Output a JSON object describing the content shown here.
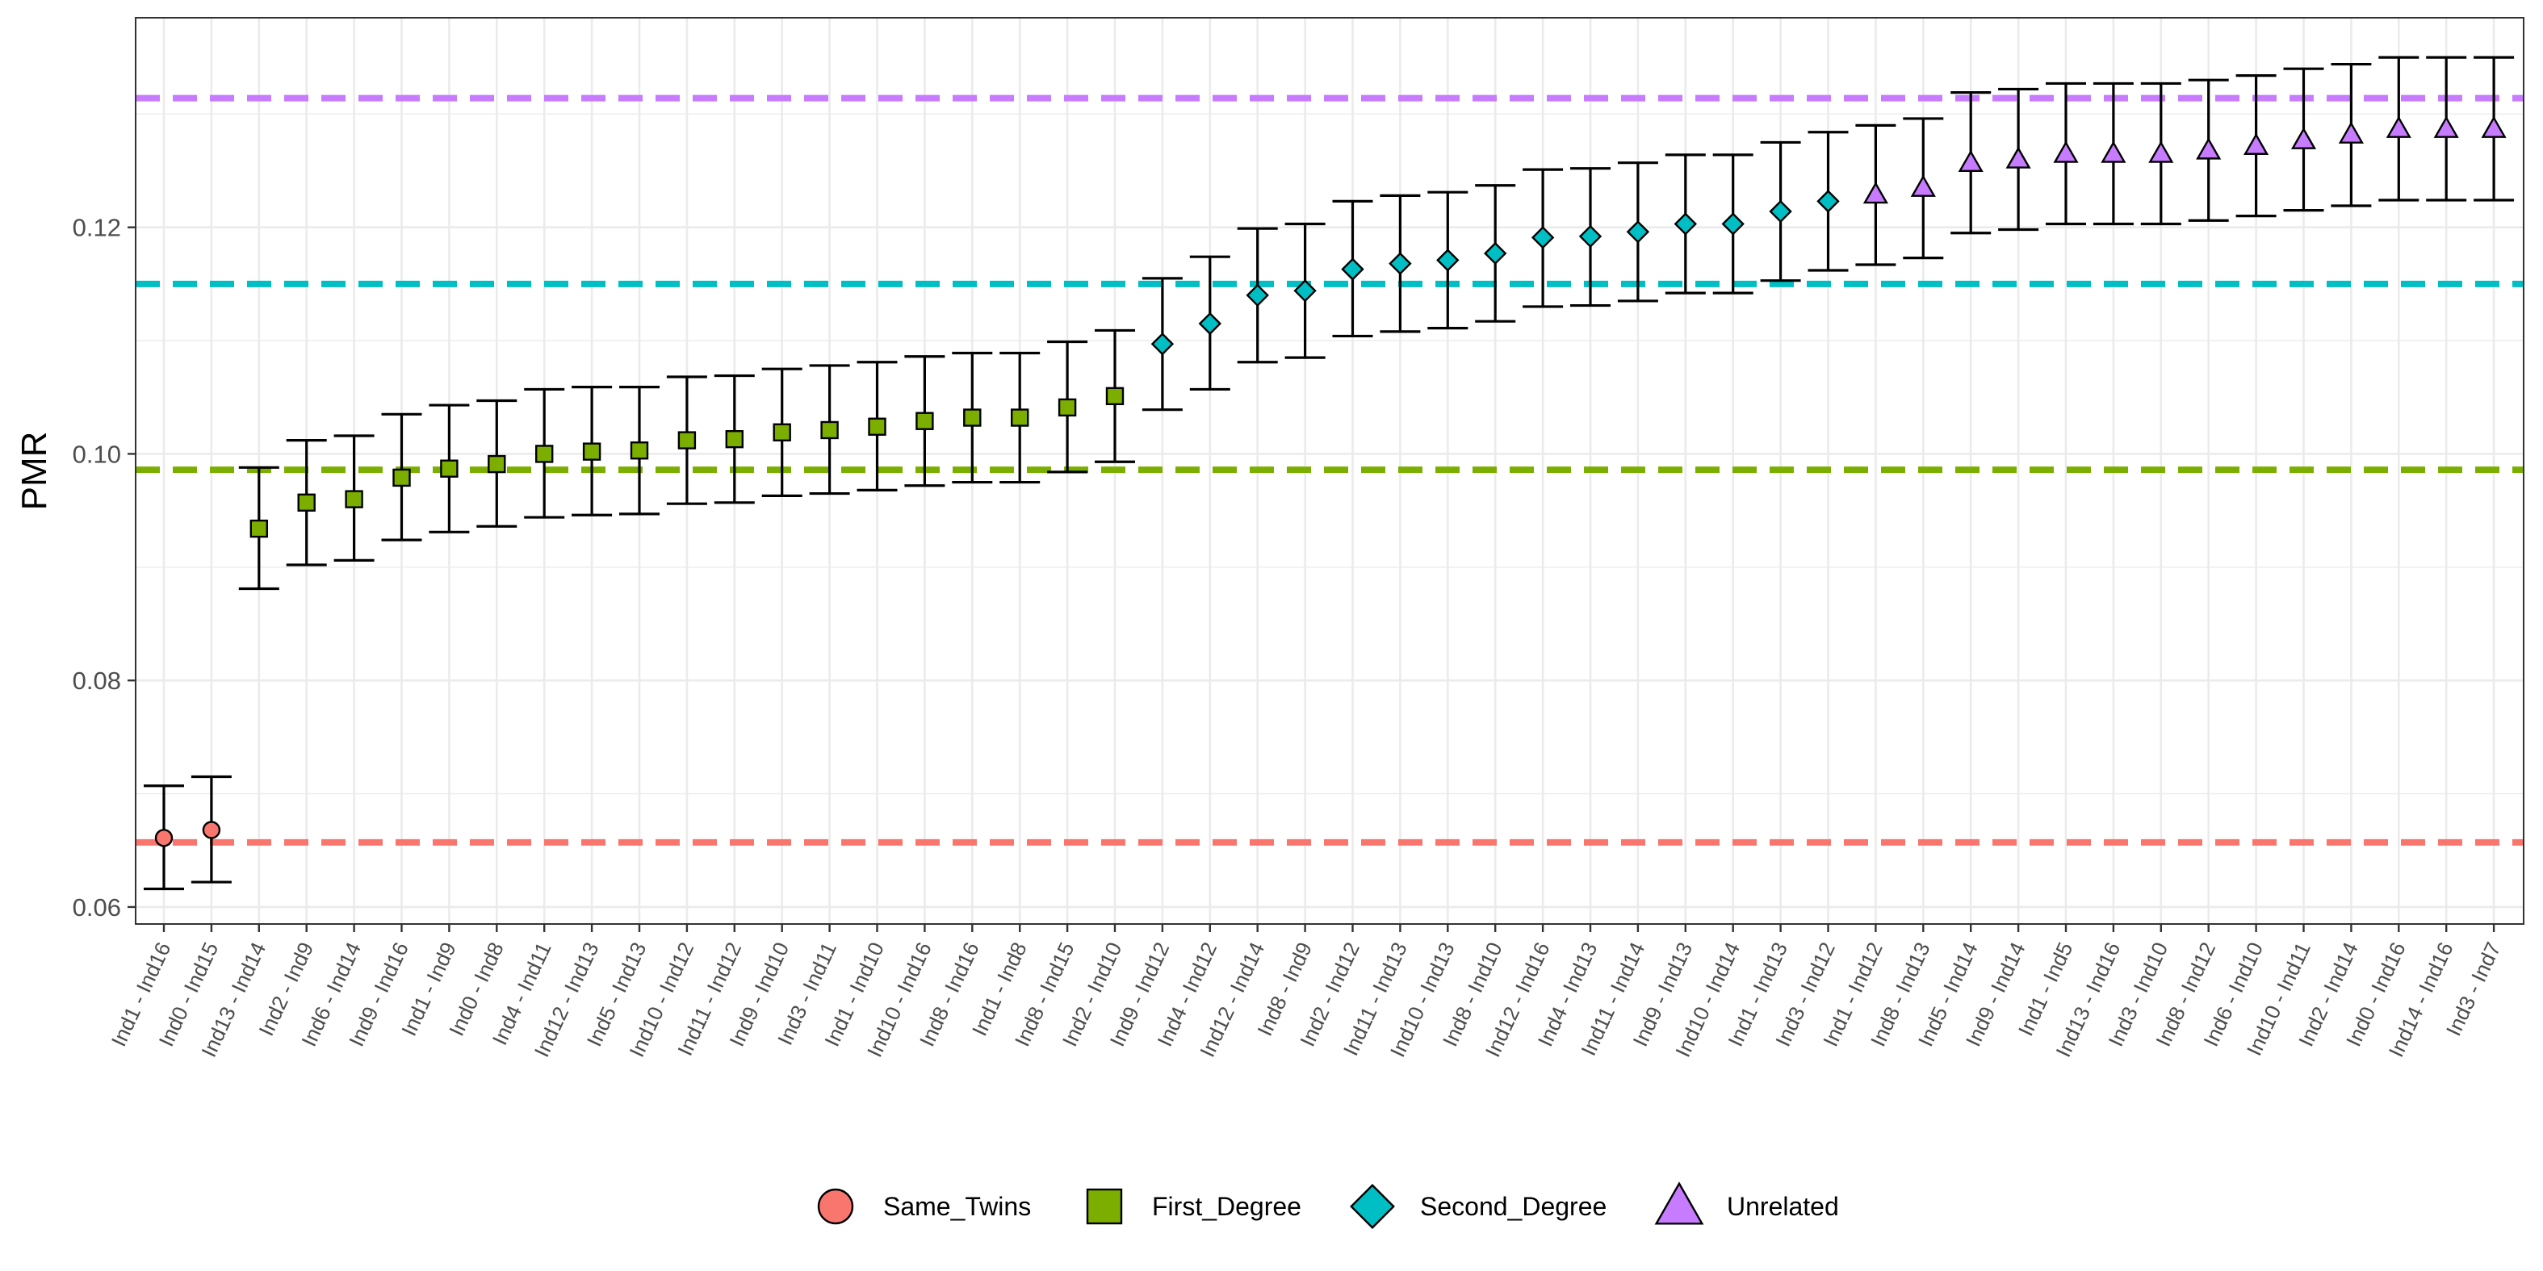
{
  "chart_data": {
    "type": "scatter",
    "title": "",
    "xlabel": "",
    "ylabel": "PMR",
    "ylim": [
      0.0585,
      0.1385
    ],
    "yticks": [
      0.06,
      0.08,
      0.1,
      0.12
    ],
    "ytick_labels": [
      "0.06",
      "0.08",
      "0.10",
      "0.12"
    ],
    "grid": true,
    "legend_position": "bottom",
    "groups": [
      {
        "name": "Same_Twins",
        "color": "#F8766D",
        "shape": "circle",
        "reference_line": 0.0657
      },
      {
        "name": "First_Degree",
        "color": "#7CAE00",
        "shape": "square",
        "reference_line": 0.0986
      },
      {
        "name": "Second_Degree",
        "color": "#00BFC4",
        "shape": "diamond",
        "reference_line": 0.115
      },
      {
        "name": "Unrelated",
        "color": "#C77CFF",
        "shape": "triangle",
        "reference_line": 0.1314
      }
    ],
    "points": [
      {
        "label": "Ind1 - Ind16",
        "group": "Same_Twins",
        "value": 0.0661,
        "lower": 0.0616,
        "upper": 0.0707
      },
      {
        "label": "Ind0 - Ind15",
        "group": "Same_Twins",
        "value": 0.0668,
        "lower": 0.0622,
        "upper": 0.0715
      },
      {
        "label": "Ind13 - Ind14",
        "group": "First_Degree",
        "value": 0.0934,
        "lower": 0.0881,
        "upper": 0.0988
      },
      {
        "label": "Ind2 - Ind9",
        "group": "First_Degree",
        "value": 0.0957,
        "lower": 0.0902,
        "upper": 0.1012
      },
      {
        "label": "Ind6 - Ind14",
        "group": "First_Degree",
        "value": 0.096,
        "lower": 0.0906,
        "upper": 0.1016
      },
      {
        "label": "Ind9 - Ind16",
        "group": "First_Degree",
        "value": 0.0979,
        "lower": 0.0924,
        "upper": 0.1035
      },
      {
        "label": "Ind1 - Ind9",
        "group": "First_Degree",
        "value": 0.0987,
        "lower": 0.0931,
        "upper": 0.1043
      },
      {
        "label": "Ind0 - Ind8",
        "group": "First_Degree",
        "value": 0.0991,
        "lower": 0.0936,
        "upper": 0.1047
      },
      {
        "label": "Ind4 - Ind11",
        "group": "First_Degree",
        "value": 0.1,
        "lower": 0.0944,
        "upper": 0.1057
      },
      {
        "label": "Ind12 - Ind13",
        "group": "First_Degree",
        "value": 0.1002,
        "lower": 0.0946,
        "upper": 0.1059
      },
      {
        "label": "Ind5 - Ind13",
        "group": "First_Degree",
        "value": 0.1003,
        "lower": 0.0947,
        "upper": 0.1059
      },
      {
        "label": "Ind10 - Ind12",
        "group": "First_Degree",
        "value": 0.1012,
        "lower": 0.0956,
        "upper": 0.1068
      },
      {
        "label": "Ind11 - Ind12",
        "group": "First_Degree",
        "value": 0.1013,
        "lower": 0.0957,
        "upper": 0.1069
      },
      {
        "label": "Ind9 - Ind10",
        "group": "First_Degree",
        "value": 0.1019,
        "lower": 0.0963,
        "upper": 0.1075
      },
      {
        "label": "Ind3 - Ind11",
        "group": "First_Degree",
        "value": 0.1021,
        "lower": 0.0965,
        "upper": 0.1078
      },
      {
        "label": "Ind1 - Ind10",
        "group": "First_Degree",
        "value": 0.1024,
        "lower": 0.0968,
        "upper": 0.1081
      },
      {
        "label": "Ind10 - Ind16",
        "group": "First_Degree",
        "value": 0.1029,
        "lower": 0.0972,
        "upper": 0.1086
      },
      {
        "label": "Ind8 - Ind16",
        "group": "First_Degree",
        "value": 0.1032,
        "lower": 0.0975,
        "upper": 0.1089
      },
      {
        "label": "Ind1 - Ind8",
        "group": "First_Degree",
        "value": 0.1032,
        "lower": 0.0975,
        "upper": 0.1089
      },
      {
        "label": "Ind8 - Ind15",
        "group": "First_Degree",
        "value": 0.1041,
        "lower": 0.0984,
        "upper": 0.1099
      },
      {
        "label": "Ind2 - Ind10",
        "group": "First_Degree",
        "value": 0.1051,
        "lower": 0.0993,
        "upper": 0.1109
      },
      {
        "label": "Ind9 - Ind12",
        "group": "Second_Degree",
        "value": 0.1097,
        "lower": 0.1039,
        "upper": 0.1155
      },
      {
        "label": "Ind4 - Ind12",
        "group": "Second_Degree",
        "value": 0.1115,
        "lower": 0.1057,
        "upper": 0.1174
      },
      {
        "label": "Ind12 - Ind14",
        "group": "Second_Degree",
        "value": 0.114,
        "lower": 0.1081,
        "upper": 0.1199
      },
      {
        "label": "Ind8 - Ind9",
        "group": "Second_Degree",
        "value": 0.1144,
        "lower": 0.1085,
        "upper": 0.1203
      },
      {
        "label": "Ind2 - Ind12",
        "group": "Second_Degree",
        "value": 0.1163,
        "lower": 0.1104,
        "upper": 0.1223
      },
      {
        "label": "Ind11 - Ind13",
        "group": "Second_Degree",
        "value": 0.1168,
        "lower": 0.1108,
        "upper": 0.1228
      },
      {
        "label": "Ind10 - Ind13",
        "group": "Second_Degree",
        "value": 0.1171,
        "lower": 0.1111,
        "upper": 0.1231
      },
      {
        "label": "Ind8 - Ind10",
        "group": "Second_Degree",
        "value": 0.1177,
        "lower": 0.1117,
        "upper": 0.1237
      },
      {
        "label": "Ind12 - Ind16",
        "group": "Second_Degree",
        "value": 0.1191,
        "lower": 0.113,
        "upper": 0.1251
      },
      {
        "label": "Ind4 - Ind13",
        "group": "Second_Degree",
        "value": 0.1192,
        "lower": 0.1131,
        "upper": 0.1252
      },
      {
        "label": "Ind11 - Ind14",
        "group": "Second_Degree",
        "value": 0.1196,
        "lower": 0.1135,
        "upper": 0.1257
      },
      {
        "label": "Ind9 - Ind13",
        "group": "Second_Degree",
        "value": 0.1203,
        "lower": 0.1142,
        "upper": 0.1264
      },
      {
        "label": "Ind10 - Ind14",
        "group": "Second_Degree",
        "value": 0.1203,
        "lower": 0.1142,
        "upper": 0.1264
      },
      {
        "label": "Ind1 - Ind13",
        "group": "Second_Degree",
        "value": 0.1214,
        "lower": 0.1153,
        "upper": 0.1275
      },
      {
        "label": "Ind3 - Ind12",
        "group": "Second_Degree",
        "value": 0.1223,
        "lower": 0.1162,
        "upper": 0.1284
      },
      {
        "label": "Ind1 - Ind12",
        "group": "Unrelated",
        "value": 0.1229,
        "lower": 0.1167,
        "upper": 0.129
      },
      {
        "label": "Ind8 - Ind13",
        "group": "Unrelated",
        "value": 0.1235,
        "lower": 0.1173,
        "upper": 0.1296
      },
      {
        "label": "Ind5 - Ind14",
        "group": "Unrelated",
        "value": 0.1257,
        "lower": 0.1195,
        "upper": 0.1319
      },
      {
        "label": "Ind9 - Ind14",
        "group": "Unrelated",
        "value": 0.126,
        "lower": 0.1198,
        "upper": 0.1322
      },
      {
        "label": "Ind1 - Ind5",
        "group": "Unrelated",
        "value": 0.1265,
        "lower": 0.1203,
        "upper": 0.1327
      },
      {
        "label": "Ind13 - Ind16",
        "group": "Unrelated",
        "value": 0.1265,
        "lower": 0.1203,
        "upper": 0.1327
      },
      {
        "label": "Ind3 - Ind10",
        "group": "Unrelated",
        "value": 0.1265,
        "lower": 0.1203,
        "upper": 0.1327
      },
      {
        "label": "Ind8 - Ind12",
        "group": "Unrelated",
        "value": 0.1268,
        "lower": 0.1206,
        "upper": 0.133
      },
      {
        "label": "Ind6 - Ind10",
        "group": "Unrelated",
        "value": 0.1272,
        "lower": 0.121,
        "upper": 0.1334
      },
      {
        "label": "Ind10 - Ind11",
        "group": "Unrelated",
        "value": 0.1277,
        "lower": 0.1215,
        "upper": 0.134
      },
      {
        "label": "Ind2 - Ind14",
        "group": "Unrelated",
        "value": 0.1282,
        "lower": 0.1219,
        "upper": 0.1344
      },
      {
        "label": "Ind0 - Ind16",
        "group": "Unrelated",
        "value": 0.1287,
        "lower": 0.1224,
        "upper": 0.135
      },
      {
        "label": "Ind14 - Ind16",
        "group": "Unrelated",
        "value": 0.1287,
        "lower": 0.1224,
        "upper": 0.135
      },
      {
        "label": "Ind3 - Ind7",
        "group": "Unrelated",
        "value": 0.1287,
        "lower": 0.1224,
        "upper": 0.135
      }
    ]
  }
}
